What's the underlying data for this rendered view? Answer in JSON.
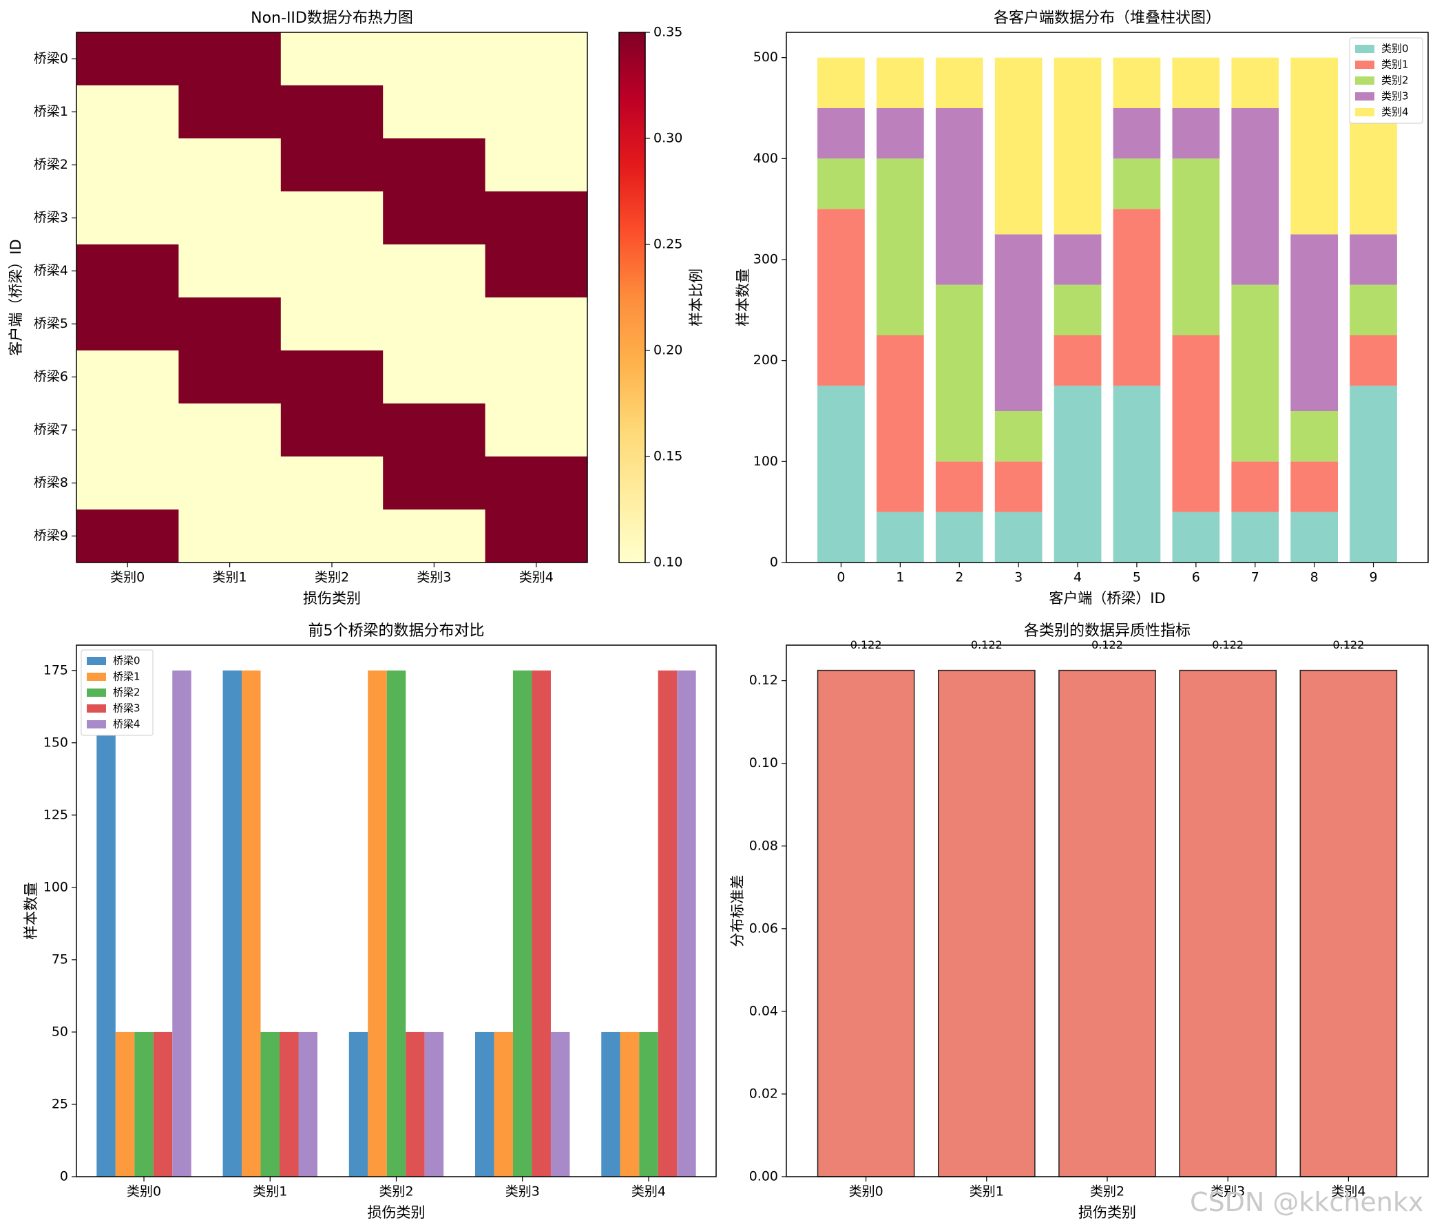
{
  "chart_data": [
    {
      "type": "heatmap",
      "title": "Non-IID数据分布热力图",
      "xlabel": "损伤类别",
      "ylabel": "客户端（桥梁）ID",
      "x_categories": [
        "类别0",
        "类别1",
        "类别2",
        "类别3",
        "类别4"
      ],
      "y_categories": [
        "桥梁0",
        "桥梁1",
        "桥梁2",
        "桥梁3",
        "桥梁4",
        "桥梁5",
        "桥梁6",
        "桥梁7",
        "桥梁8",
        "桥梁9"
      ],
      "values": [
        [
          0.35,
          0.35,
          0.1,
          0.1,
          0.1
        ],
        [
          0.1,
          0.35,
          0.35,
          0.1,
          0.1
        ],
        [
          0.1,
          0.1,
          0.35,
          0.35,
          0.1
        ],
        [
          0.1,
          0.1,
          0.1,
          0.35,
          0.35
        ],
        [
          0.35,
          0.1,
          0.1,
          0.1,
          0.35
        ],
        [
          0.35,
          0.35,
          0.1,
          0.1,
          0.1
        ],
        [
          0.1,
          0.35,
          0.35,
          0.1,
          0.1
        ],
        [
          0.1,
          0.1,
          0.35,
          0.35,
          0.1
        ],
        [
          0.1,
          0.1,
          0.1,
          0.35,
          0.35
        ],
        [
          0.35,
          0.1,
          0.1,
          0.1,
          0.35
        ]
      ],
      "colormap": "YlOrRd",
      "vmin": 0.1,
      "vmax": 0.35,
      "colorbar_label": "样本比例",
      "colorbar_ticks": [
        0.1,
        0.15,
        0.2,
        0.25,
        0.3,
        0.35
      ],
      "colorbar_tick_labels": [
        "0.10",
        "0.15",
        "0.20",
        "0.25",
        "0.30",
        "0.35"
      ]
    },
    {
      "type": "bar",
      "stacked": true,
      "title": "各客户端数据分布（堆叠柱状图）",
      "xlabel": "客户端（桥梁）ID",
      "ylabel": "样本数量",
      "categories": [
        "0",
        "1",
        "2",
        "3",
        "4",
        "5",
        "6",
        "7",
        "8",
        "9"
      ],
      "ylim": [
        0,
        525
      ],
      "yticks": [
        0,
        100,
        200,
        300,
        400,
        500
      ],
      "ytick_labels": [
        "0",
        "100",
        "200",
        "300",
        "400",
        "500"
      ],
      "legend_position": "top-right",
      "series": [
        {
          "name": "类别0",
          "color": "#8dd3c7",
          "values": [
            175,
            50,
            50,
            50,
            175,
            175,
            50,
            50,
            50,
            175
          ]
        },
        {
          "name": "类别1",
          "color": "#fb8072",
          "values": [
            175,
            175,
            50,
            50,
            50,
            175,
            175,
            50,
            50,
            50
          ]
        },
        {
          "name": "类别2",
          "color": "#b3de69",
          "values": [
            50,
            175,
            175,
            50,
            50,
            50,
            175,
            175,
            50,
            50
          ]
        },
        {
          "name": "类别3",
          "color": "#bc80bd",
          "values": [
            50,
            50,
            175,
            175,
            50,
            50,
            50,
            175,
            175,
            50
          ]
        },
        {
          "name": "类别4",
          "color": "#ffed6f",
          "values": [
            50,
            50,
            50,
            175,
            175,
            50,
            50,
            50,
            175,
            175
          ]
        }
      ]
    },
    {
      "type": "bar",
      "grouped": true,
      "title": "前5个桥梁的数据分布对比",
      "xlabel": "损伤类别",
      "ylabel": "样本数量",
      "categories": [
        "类别0",
        "类别1",
        "类别2",
        "类别3",
        "类别4"
      ],
      "ylim": [
        0,
        183.75
      ],
      "yticks": [
        0,
        25,
        50,
        75,
        100,
        125,
        150,
        175
      ],
      "ytick_labels": [
        "0",
        "25",
        "50",
        "75",
        "100",
        "125",
        "150",
        "175"
      ],
      "legend_position": "top-left",
      "series": [
        {
          "name": "桥梁0",
          "color": "#4a90c4",
          "values": [
            175,
            175,
            50,
            50,
            50
          ]
        },
        {
          "name": "桥梁1",
          "color": "#fd9a3e",
          "values": [
            50,
            175,
            175,
            50,
            50
          ]
        },
        {
          "name": "桥梁2",
          "color": "#56b356",
          "values": [
            50,
            50,
            175,
            175,
            50
          ]
        },
        {
          "name": "桥梁3",
          "color": "#de5253",
          "values": [
            50,
            50,
            50,
            175,
            175
          ]
        },
        {
          "name": "桥梁4",
          "color": "#a98ac9",
          "values": [
            175,
            50,
            50,
            50,
            175
          ]
        }
      ]
    },
    {
      "type": "bar",
      "title": "各类别的数据异质性指标",
      "xlabel": "损伤类别",
      "ylabel": "分布标准差",
      "categories": [
        "类别0",
        "类别1",
        "类别2",
        "类别3",
        "类别4"
      ],
      "values": [
        0.1225,
        0.1225,
        0.1225,
        0.1225,
        0.1225
      ],
      "data_labels": [
        "0.122",
        "0.122",
        "0.122",
        "0.122",
        "0.122"
      ],
      "ylim": [
        0,
        0.1286
      ],
      "yticks": [
        0.0,
        0.02,
        0.04,
        0.06,
        0.08,
        0.1,
        0.12
      ],
      "ytick_labels": [
        "0.00",
        "0.02",
        "0.04",
        "0.06",
        "0.08",
        "0.10",
        "0.12"
      ],
      "bar_color": "#ec8274",
      "edge_color": "#222222"
    }
  ],
  "watermark": "CSDN @kkchenkx"
}
